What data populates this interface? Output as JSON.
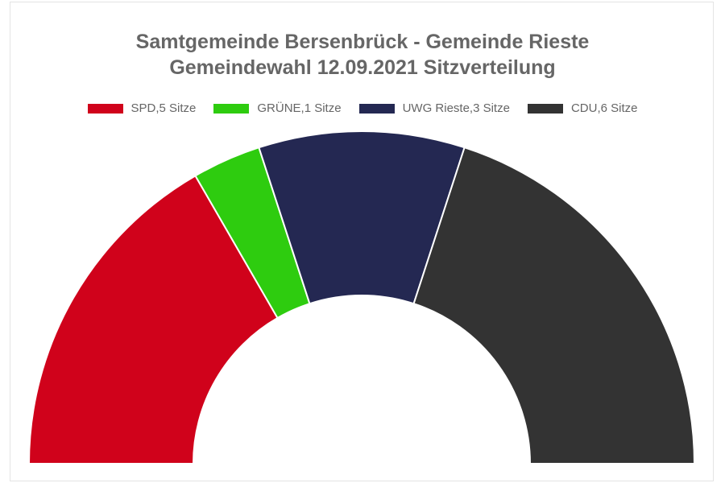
{
  "chart_data": {
    "type": "pie",
    "variant": "half-doughnut",
    "title": [
      "Samtgemeinde Bersenbrück - Gemeinde Rieste",
      "Gemeindewahl 12.09.2021 Sitzverteilung"
    ],
    "legend_position": "top",
    "series": [
      {
        "label": "SPD,5 Sitze",
        "value": 5,
        "color": "#d0021b"
      },
      {
        "label": "GRÜNE,1 Sitze",
        "value": 1,
        "color": "#2ecc0f"
      },
      {
        "label": "UWG Rieste,3 Sitze",
        "value": 3,
        "color": "#242852"
      },
      {
        "label": "CDU,6 Sitze",
        "value": 6,
        "color": "#333333"
      }
    ]
  }
}
